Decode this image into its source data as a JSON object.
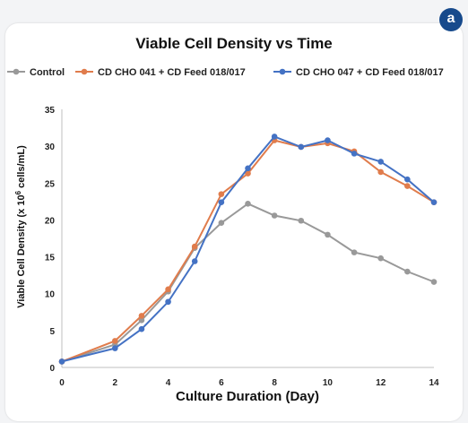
{
  "panel_label": "a",
  "chart_data": {
    "type": "line",
    "title": "Viable Cell Density vs Time",
    "xlabel": "Culture Duration (Day)",
    "ylabel_pre": "Viable Cell Density (x 10",
    "ylabel_sup": "6",
    "ylabel_post": " cells/mL)",
    "xlim": [
      0,
      14
    ],
    "ylim": [
      0,
      35
    ],
    "xticks": [
      0,
      2,
      4,
      6,
      8,
      10,
      12,
      14
    ],
    "yticks": [
      0,
      5,
      10,
      15,
      20,
      25,
      30,
      35
    ],
    "grid": false,
    "legend": "top",
    "series": [
      {
        "name": "Control",
        "color": "#999999",
        "x": [
          0,
          2,
          3,
          4,
          5,
          6,
          7,
          8,
          9,
          10,
          11,
          12,
          13,
          14
        ],
        "values": [
          0.8,
          3.1,
          6.4,
          10.3,
          16.2,
          19.6,
          22.2,
          20.6,
          19.9,
          18.0,
          15.6,
          14.8,
          13.0,
          11.6
        ]
      },
      {
        "name": "CD CHO 041  + CD Feed 018/017",
        "color": "#e07c4c",
        "x": [
          0,
          2,
          3,
          4,
          5,
          6,
          7,
          8,
          9,
          10,
          11,
          12,
          13,
          14
        ],
        "values": [
          0.8,
          3.6,
          7.0,
          10.6,
          16.4,
          23.5,
          26.3,
          30.8,
          29.9,
          30.4,
          29.3,
          26.5,
          24.6,
          22.4
        ]
      },
      {
        "name": "CD CHO 047  + CD Feed 018/017",
        "color": "#4472c4",
        "x": [
          0,
          2,
          3,
          4,
          5,
          6,
          7,
          8,
          9,
          10,
          11,
          12,
          13,
          14
        ],
        "values": [
          0.8,
          2.6,
          5.2,
          8.9,
          14.4,
          22.4,
          27.0,
          31.3,
          29.9,
          30.8,
          29.0,
          27.9,
          25.5,
          22.4
        ]
      }
    ]
  }
}
